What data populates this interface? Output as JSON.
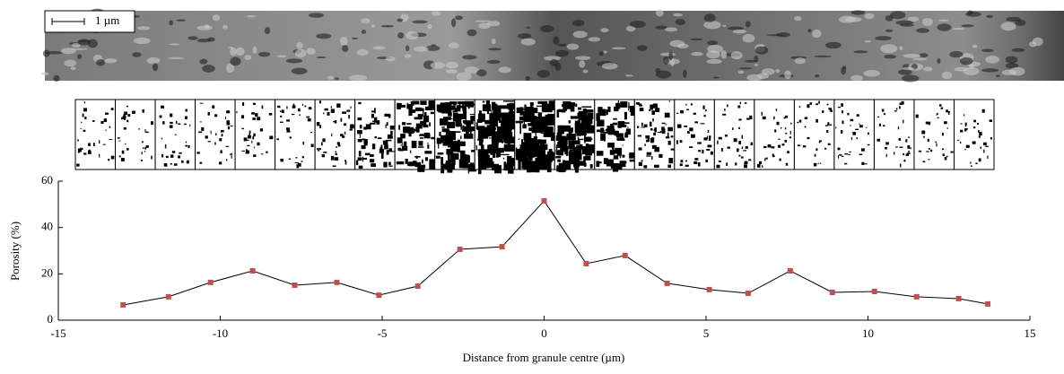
{
  "scale_bar_label": "1 µm",
  "chart_data": {
    "type": "line",
    "x_label": "Distance from granule centre (µm)",
    "y_label": "Porosity (%)",
    "xlim": [
      -15,
      15
    ],
    "xticks": [
      -15,
      -10,
      -5,
      0,
      5,
      10,
      15
    ],
    "ylim": [
      0,
      60
    ],
    "yticks": [
      0,
      20,
      40,
      60
    ],
    "x": [
      -13.0,
      -11.6,
      -10.3,
      -9.0,
      -7.7,
      -6.4,
      -5.1,
      -3.9,
      -2.6,
      -1.3,
      0,
      1.3,
      2.5,
      3.8,
      5.1,
      6.3,
      7.6,
      8.9,
      10.2,
      11.5,
      12.8,
      13.7
    ],
    "series": [
      {
        "color": "#c0504d",
        "values": [
          6.6,
          10.1,
          16.3,
          21.3,
          15.1,
          16.3,
          10.8,
          14.7,
          30.6,
          31.7,
          51.5,
          24.4,
          27.9,
          15.9,
          13.2,
          11.6,
          21.3,
          12.0,
          12.4,
          10.1,
          9.3,
          7.0
        ]
      }
    ]
  }
}
